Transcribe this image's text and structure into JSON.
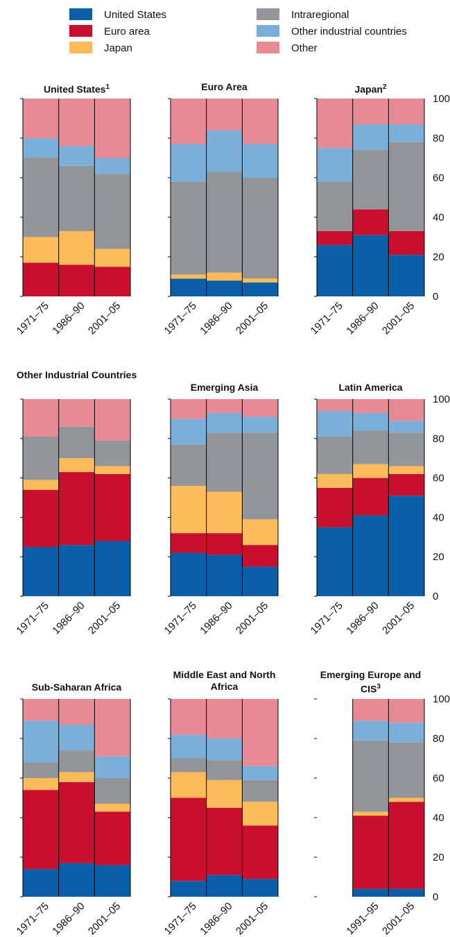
{
  "chart_data": [
    {
      "type": "stacked-bar",
      "title": "United States",
      "title_note": "1",
      "categories": [
        "1971–75",
        "1986–90",
        "2001–05"
      ],
      "ylim": [
        0,
        100
      ],
      "yticks": [
        0,
        20,
        40,
        60,
        80,
        100
      ],
      "series": [
        {
          "name": "United States",
          "color": "#0b5ea8",
          "values": [
            null,
            null,
            null
          ]
        },
        {
          "name": "Euro area",
          "color": "#c8102e",
          "values": [
            17,
            16,
            15
          ]
        },
        {
          "name": "Japan",
          "color": "#fdbb5a",
          "values": [
            13,
            17,
            9
          ]
        },
        {
          "name": "Intraregional",
          "color": "#939598",
          "values": [
            40,
            33,
            38
          ]
        },
        {
          "name": "Other industrial countries",
          "color": "#7bafd9",
          "values": [
            10,
            10,
            8
          ]
        },
        {
          "name": "Other",
          "color": "#e68a96",
          "values": [
            20,
            24,
            30
          ]
        }
      ]
    },
    {
      "type": "stacked-bar",
      "title": "Euro Area",
      "categories": [
        "1971–75",
        "1986–90",
        "2001–05"
      ],
      "ylim": [
        0,
        100
      ],
      "yticks": [
        0,
        20,
        40,
        60,
        80,
        100
      ],
      "series": [
        {
          "name": "United States",
          "color": "#0b5ea8",
          "values": [
            9,
            8,
            7
          ]
        },
        {
          "name": "Euro area",
          "color": "#c8102e",
          "values": [
            null,
            null,
            null
          ]
        },
        {
          "name": "Japan",
          "color": "#fdbb5a",
          "values": [
            2,
            4,
            2
          ]
        },
        {
          "name": "Intraregional",
          "color": "#939598",
          "values": [
            47,
            51,
            51
          ]
        },
        {
          "name": "Other industrial countries",
          "color": "#7bafd9",
          "values": [
            19,
            21,
            17
          ]
        },
        {
          "name": "Other",
          "color": "#e68a96",
          "values": [
            23,
            16,
            23
          ]
        }
      ]
    },
    {
      "type": "stacked-bar",
      "title": "Japan",
      "title_note": "2",
      "categories": [
        "1971–75",
        "1986–90",
        "2001–05"
      ],
      "ylim": [
        0,
        100
      ],
      "yticks": [
        0,
        20,
        40,
        60,
        80,
        100
      ],
      "series": [
        {
          "name": "United States",
          "color": "#0b5ea8",
          "values": [
            26,
            31,
            21
          ]
        },
        {
          "name": "Euro area",
          "color": "#c8102e",
          "values": [
            7,
            13,
            12
          ]
        },
        {
          "name": "Japan",
          "color": "#fdbb5a",
          "values": [
            null,
            null,
            null
          ]
        },
        {
          "name": "Intraregional",
          "color": "#939598",
          "values": [
            25,
            30,
            45
          ]
        },
        {
          "name": "Other industrial countries",
          "color": "#7bafd9",
          "values": [
            17,
            13,
            9
          ]
        },
        {
          "name": "Other",
          "color": "#e68a96",
          "values": [
            25,
            13,
            13
          ]
        }
      ]
    },
    {
      "type": "stacked-bar",
      "title": "Other Industrial Countries",
      "categories": [
        "1971–75",
        "1986–90",
        "2001–05"
      ],
      "ylim": [
        0,
        100
      ],
      "yticks": [
        0,
        20,
        40,
        60,
        80,
        100
      ],
      "series": [
        {
          "name": "United States",
          "color": "#0b5ea8",
          "values": [
            25,
            26,
            28
          ]
        },
        {
          "name": "Euro area",
          "color": "#c8102e",
          "values": [
            29,
            37,
            34
          ]
        },
        {
          "name": "Japan",
          "color": "#fdbb5a",
          "values": [
            5,
            7,
            4
          ]
        },
        {
          "name": "Intraregional",
          "color": "#939598",
          "values": [
            22,
            16,
            13
          ]
        },
        {
          "name": "Other industrial countries",
          "color": "#7bafd9",
          "values": [
            null,
            null,
            null
          ]
        },
        {
          "name": "Other",
          "color": "#e68a96",
          "values": [
            19,
            14,
            21
          ]
        }
      ]
    },
    {
      "type": "stacked-bar",
      "title": "Emerging Asia",
      "categories": [
        "1971–75",
        "1986–90",
        "2001–05"
      ],
      "ylim": [
        0,
        100
      ],
      "yticks": [
        0,
        20,
        40,
        60,
        80,
        100
      ],
      "series": [
        {
          "name": "United States",
          "color": "#0b5ea8",
          "values": [
            22,
            21,
            15
          ]
        },
        {
          "name": "Euro area",
          "color": "#c8102e",
          "values": [
            10,
            11,
            11
          ]
        },
        {
          "name": "Japan",
          "color": "#fdbb5a",
          "values": [
            24,
            21,
            13
          ]
        },
        {
          "name": "Intraregional",
          "color": "#939598",
          "values": [
            21,
            30,
            44
          ]
        },
        {
          "name": "Other industrial countries",
          "color": "#7bafd9",
          "values": [
            13,
            10,
            8
          ]
        },
        {
          "name": "Other",
          "color": "#e68a96",
          "values": [
            10,
            7,
            9
          ]
        }
      ]
    },
    {
      "type": "stacked-bar",
      "title": "Latin America",
      "categories": [
        "1971–75",
        "1986–90",
        "2001–05"
      ],
      "ylim": [
        0,
        100
      ],
      "yticks": [
        0,
        20,
        40,
        60,
        80,
        100
      ],
      "series": [
        {
          "name": "United States",
          "color": "#0b5ea8",
          "values": [
            35,
            41,
            51
          ]
        },
        {
          "name": "Euro area",
          "color": "#c8102e",
          "values": [
            20,
            19,
            11
          ]
        },
        {
          "name": "Japan",
          "color": "#fdbb5a",
          "values": [
            7,
            7,
            4
          ]
        },
        {
          "name": "Intraregional",
          "color": "#939598",
          "values": [
            19,
            17,
            17
          ]
        },
        {
          "name": "Other industrial countries",
          "color": "#7bafd9",
          "values": [
            13,
            9,
            6
          ]
        },
        {
          "name": "Other",
          "color": "#e68a96",
          "values": [
            6,
            7,
            11
          ]
        }
      ]
    },
    {
      "type": "stacked-bar",
      "title": "Sub-Saharan Africa",
      "categories": [
        "1971–75",
        "1986–90",
        "2001–05"
      ],
      "ylim": [
        0,
        100
      ],
      "yticks": [
        0,
        20,
        40,
        60,
        80,
        100
      ],
      "series": [
        {
          "name": "United States",
          "color": "#0b5ea8",
          "values": [
            14,
            17,
            16
          ]
        },
        {
          "name": "Euro area",
          "color": "#c8102e",
          "values": [
            40,
            41,
            27
          ]
        },
        {
          "name": "Japan",
          "color": "#fdbb5a",
          "values": [
            6,
            5,
            4
          ]
        },
        {
          "name": "Intraregional",
          "color": "#939598",
          "values": [
            8,
            11,
            13
          ]
        },
        {
          "name": "Other industrial countries",
          "color": "#7bafd9",
          "values": [
            21,
            13,
            11
          ]
        },
        {
          "name": "Other",
          "color": "#e68a96",
          "values": [
            11,
            13,
            29
          ]
        }
      ]
    },
    {
      "type": "stacked-bar",
      "title": "Middle East and North Africa",
      "categories": [
        "1971–75",
        "1986–90",
        "2001–05"
      ],
      "ylim": [
        0,
        100
      ],
      "yticks": [
        0,
        20,
        40,
        60,
        80,
        100
      ],
      "series": [
        {
          "name": "United States",
          "color": "#0b5ea8",
          "values": [
            8,
            11,
            9
          ]
        },
        {
          "name": "Euro area",
          "color": "#c8102e",
          "values": [
            42,
            34,
            27
          ]
        },
        {
          "name": "Japan",
          "color": "#fdbb5a",
          "values": [
            13,
            14,
            12
          ]
        },
        {
          "name": "Intraregional",
          "color": "#939598",
          "values": [
            7,
            10,
            11
          ]
        },
        {
          "name": "Other industrial countries",
          "color": "#7bafd9",
          "values": [
            12,
            11,
            7
          ]
        },
        {
          "name": "Other",
          "color": "#e68a96",
          "values": [
            18,
            20,
            34
          ]
        }
      ]
    },
    {
      "type": "stacked-bar",
      "title": "Emerging Europe and CIS",
      "title_note": "3",
      "categories": [
        "1991–95",
        "2001–05"
      ],
      "ylim": [
        0,
        100
      ],
      "yticks": [
        0,
        20,
        40,
        60,
        80,
        100
      ],
      "series": [
        {
          "name": "United States",
          "color": "#0b5ea8",
          "values": [
            4,
            4
          ]
        },
        {
          "name": "Euro area",
          "color": "#c8102e",
          "values": [
            37,
            44
          ]
        },
        {
          "name": "Japan",
          "color": "#fdbb5a",
          "values": [
            2,
            2
          ]
        },
        {
          "name": "Intraregional",
          "color": "#939598",
          "values": [
            36,
            28
          ]
        },
        {
          "name": "Other industrial countries",
          "color": "#7bafd9",
          "values": [
            10,
            10
          ]
        },
        {
          "name": "Other",
          "color": "#e68a96",
          "values": [
            11,
            12
          ]
        }
      ]
    }
  ]
}
